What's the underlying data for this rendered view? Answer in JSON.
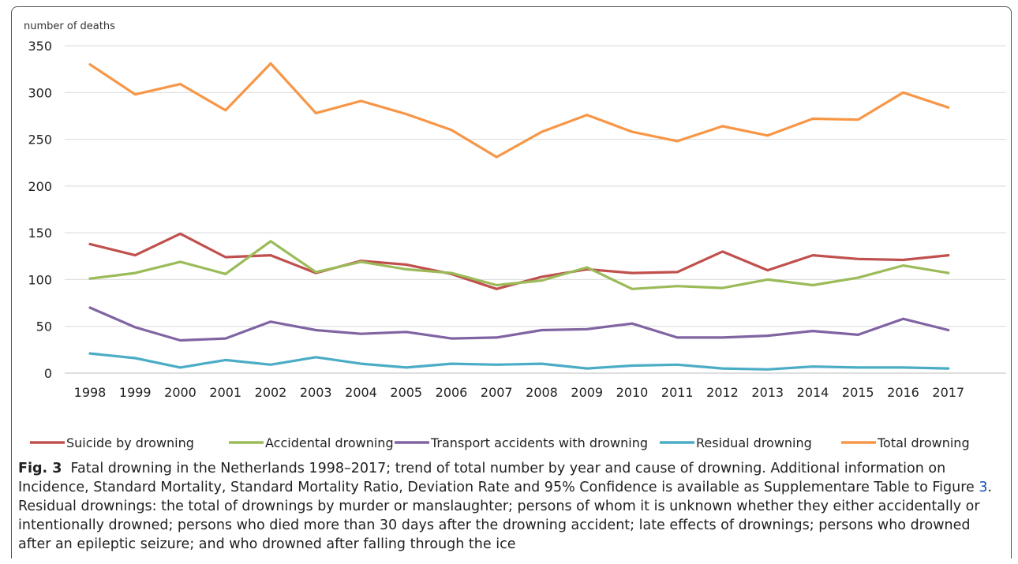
{
  "chart_data": {
    "type": "line",
    "ylabel": "number of deaths",
    "xlabel": "",
    "ylim": [
      0,
      350
    ],
    "yticks": [
      0,
      50,
      100,
      150,
      200,
      250,
      300,
      350
    ],
    "grid": "horizontal",
    "legend_position": "bottom",
    "x": [
      "1998",
      "1999",
      "2000",
      "2001",
      "2002",
      "2003",
      "2004",
      "2005",
      "2006",
      "2007",
      "2008",
      "2009",
      "2010",
      "2011",
      "2012",
      "2013",
      "2014",
      "2015",
      "2016",
      "2017"
    ],
    "series": [
      {
        "name": "Suicide by drowning",
        "color": "#c0504d",
        "values": [
          138,
          126,
          149,
          124,
          126,
          107,
          120,
          116,
          106,
          90,
          103,
          111,
          107,
          108,
          130,
          110,
          126,
          122,
          121,
          126
        ]
      },
      {
        "name": "Accidental drowning",
        "color": "#9bbb59",
        "values": [
          101,
          107,
          119,
          106,
          141,
          108,
          119,
          111,
          107,
          94,
          99,
          113,
          90,
          93,
          91,
          100,
          94,
          102,
          115,
          107
        ]
      },
      {
        "name": "Transport accidents with drowning",
        "color": "#8064a2",
        "values": [
          70,
          49,
          35,
          37,
          55,
          46,
          42,
          44,
          37,
          38,
          46,
          47,
          53,
          38,
          38,
          40,
          45,
          41,
          58,
          46
        ]
      },
      {
        "name": "Residual drowning",
        "color": "#4bacc6",
        "values": [
          21,
          16,
          6,
          14,
          9,
          17,
          10,
          6,
          10,
          9,
          10,
          5,
          8,
          9,
          5,
          4,
          7,
          6,
          6,
          5
        ]
      },
      {
        "name": "Total drowning",
        "color": "#f79646",
        "values": [
          330,
          298,
          309,
          281,
          331,
          278,
          291,
          277,
          260,
          231,
          258,
          276,
          258,
          248,
          264,
          254,
          272,
          271,
          300,
          284
        ]
      }
    ]
  },
  "caption": {
    "label": "Fig. 3",
    "text_before_link": "Fatal drowning in the Netherlands 1998–2017; trend of total number by year and cause of drowning. Additional information on Incidence, Standard Mortality, Standard Mortality Ratio, Deviation Rate and 95% Confidence is available as Supplementare Table to Figure ",
    "link_text": "3",
    "text_after_link": ". Residual drownings: the total of drownings by murder or manslaughter; persons of whom it is unknown whether they either accidentally or intentionally drowned; persons who died more than 30 days after the drowning accident; late effects of drownings; persons who drowned after an epileptic seizure; and who drowned after falling through the ice"
  }
}
